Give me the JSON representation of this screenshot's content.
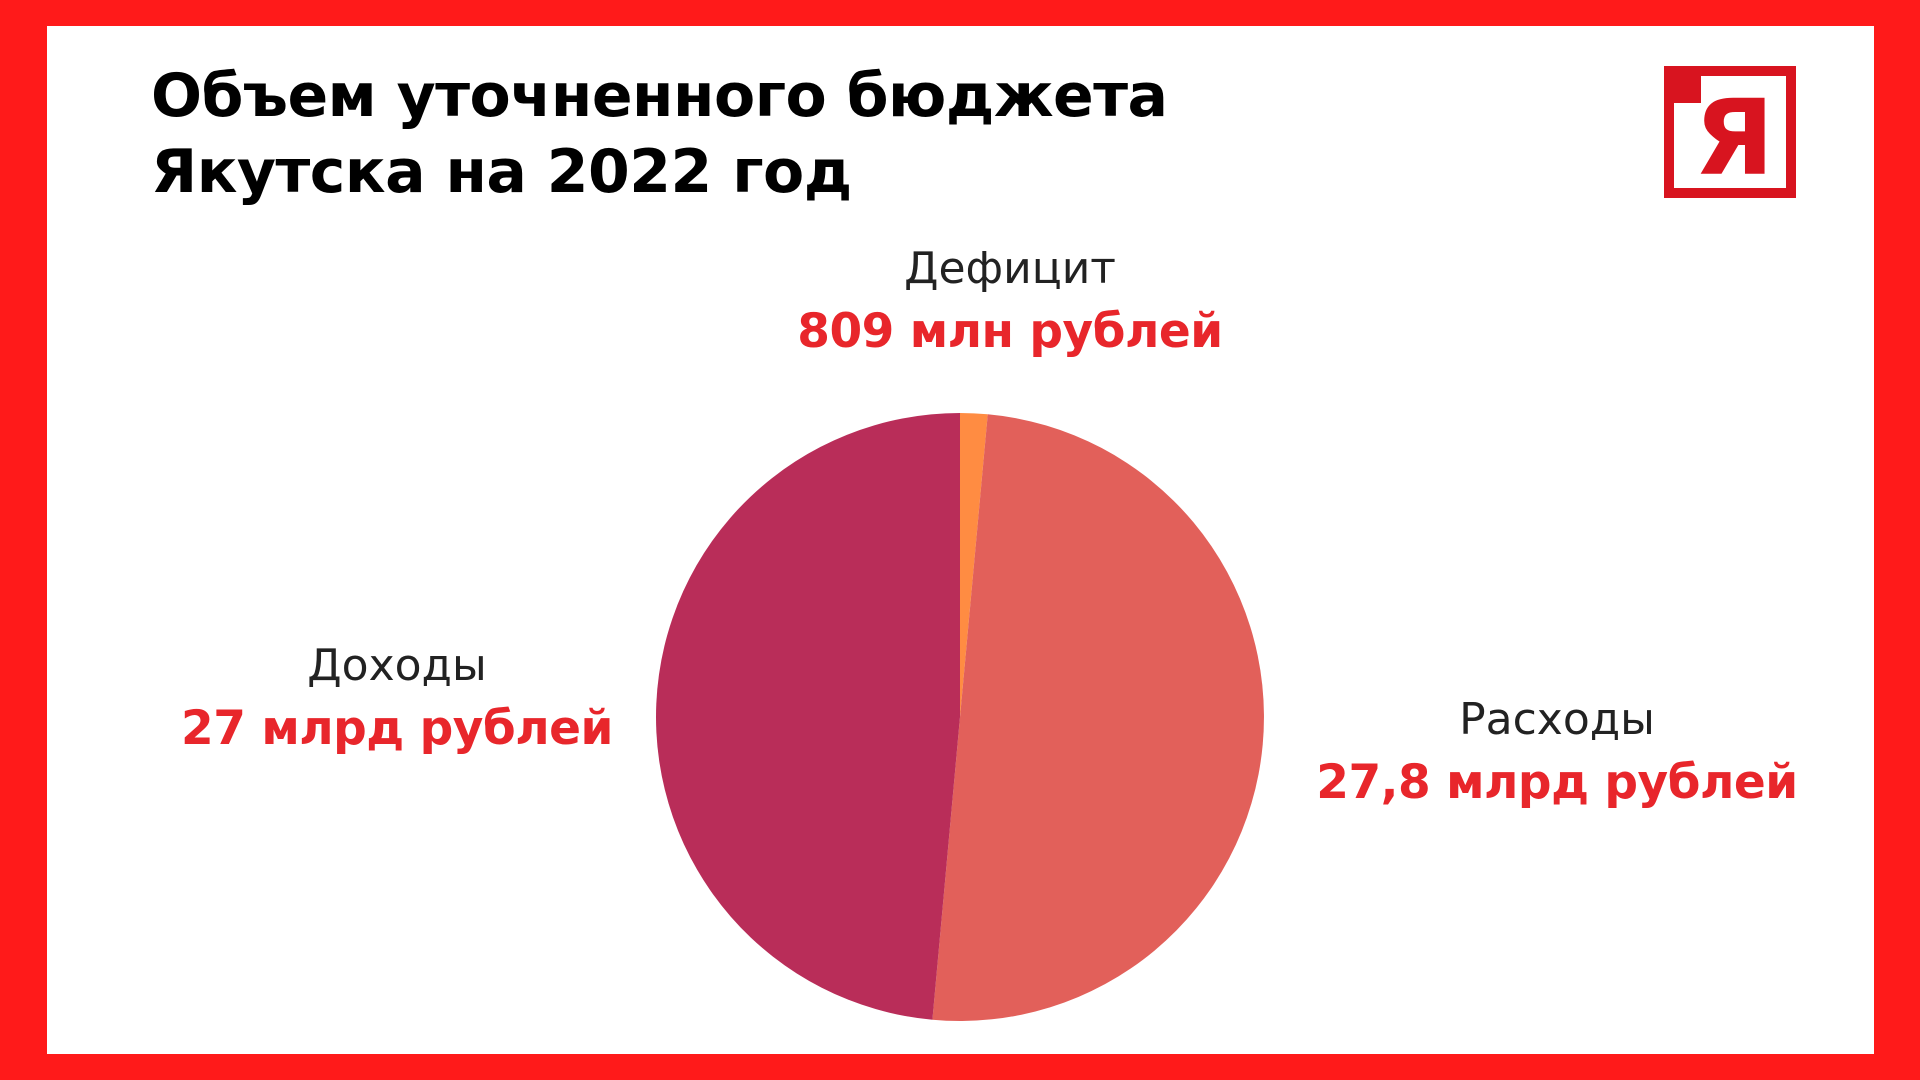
{
  "title": "Объем уточненного бюджета Якутска на 2022 год",
  "logo": {
    "letter": "Я",
    "color": "#D8141F"
  },
  "colors": {
    "frame": "#FF1A1A",
    "background": "#FFFFFF",
    "value_text": "#E8262B"
  },
  "labels": {
    "deficit": {
      "name": "Дефицит",
      "value": "809 млн рублей"
    },
    "income": {
      "name": "Доходы",
      "value": "27 млрд рублей"
    },
    "expense": {
      "name": "Расходы",
      "value": "27,8 млрд рублей"
    }
  },
  "chart_data": {
    "type": "pie",
    "title": "Объем уточненного бюджета Якутска на 2022 год",
    "units": "млрд рублей",
    "slices": [
      {
        "name": "Дефицит",
        "value": 0.809,
        "display": "809 млн рублей",
        "color": "#FF8C42"
      },
      {
        "name": "Расходы",
        "value": 27.8,
        "display": "27,8 млрд рублей",
        "color": "#E2605A"
      },
      {
        "name": "Доходы",
        "value": 27,
        "display": "27 млрд рублей",
        "color": "#B92D59"
      }
    ]
  }
}
